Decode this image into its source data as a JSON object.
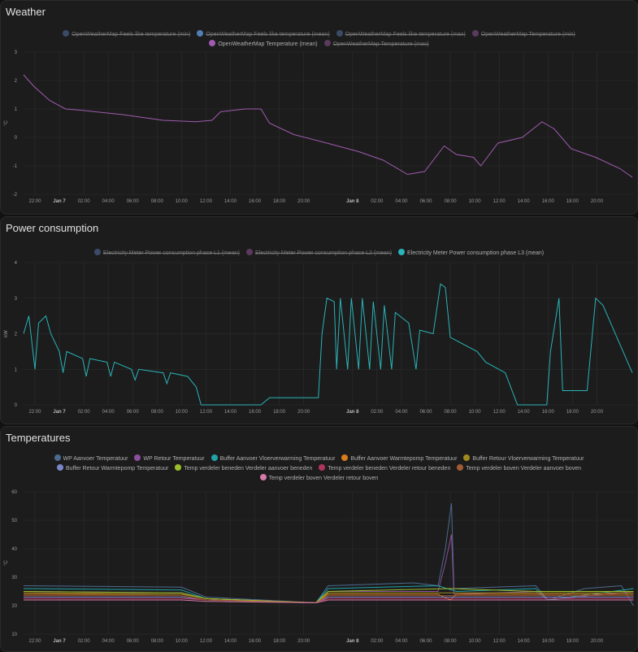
{
  "chart_data": [
    {
      "id": "weather",
      "type": "line",
      "title": "Weather",
      "ylabel": "°C",
      "ylim": [
        -2,
        3
      ],
      "yticks": [
        -2,
        -1,
        0,
        1,
        2,
        3
      ],
      "xunit": "hours since Jan 6 22:00",
      "xlim": [
        -0.93,
        49.1
      ],
      "xticks": [
        {
          "h": 0,
          "l": "22:00"
        },
        {
          "h": 2,
          "l": "Jan 7",
          "b": true
        },
        {
          "h": 4,
          "l": "02:00"
        },
        {
          "h": 6,
          "l": "04:00"
        },
        {
          "h": 8,
          "l": "06:00"
        },
        {
          "h": 10,
          "l": "08:00"
        },
        {
          "h": 12,
          "l": "10:00"
        },
        {
          "h": 14,
          "l": "12:00"
        },
        {
          "h": 16,
          "l": "14:00"
        },
        {
          "h": 18,
          "l": "16:00"
        },
        {
          "h": 20,
          "l": "18:00"
        },
        {
          "h": 22,
          "l": "20:00"
        },
        {
          "h": 26,
          "l": "Jan 8",
          "b": true
        },
        {
          "h": 28,
          "l": "02:00"
        },
        {
          "h": 30,
          "l": "04:00"
        },
        {
          "h": 32,
          "l": "06:00"
        },
        {
          "h": 34,
          "l": "08:00"
        },
        {
          "h": 36,
          "l": "10:00"
        },
        {
          "h": 38,
          "l": "12:00"
        },
        {
          "h": 40,
          "l": "14:00"
        },
        {
          "h": 42,
          "l": "16:00"
        },
        {
          "h": 44,
          "l": "18:00"
        },
        {
          "h": 46,
          "l": "20:00"
        }
      ],
      "legend": [
        {
          "name": "OpenWeatherMap Feels like temperature (min)",
          "color": "#3b4a66",
          "hidden": true
        },
        {
          "name": "OpenWeatherMap Feels like temperature (mean)",
          "color": "#4f7fb3",
          "hidden": true
        },
        {
          "name": "OpenWeatherMap Feels like temperature (max)",
          "color": "#3b4a66",
          "hidden": true
        },
        {
          "name": "OpenWeatherMap Temperature (min)",
          "color": "#5a3a5e",
          "hidden": true
        },
        {
          "name": "OpenWeatherMap Temperature (mean)",
          "color": "#a05bb0",
          "hidden": false
        },
        {
          "name": "OpenWeatherMap Temperature (max)",
          "color": "#5a3a5e",
          "hidden": true
        }
      ],
      "series": [
        {
          "name": "OpenWeatherMap Temperature (mean)",
          "color": "#a05bb0",
          "points": [
            [
              -0.93,
              2.2
            ],
            [
              -0.1,
              1.8
            ],
            [
              1.2,
              1.3
            ],
            [
              2.5,
              1.0
            ],
            [
              3.9,
              0.95
            ],
            [
              7.2,
              0.8
            ],
            [
              10.5,
              0.6
            ],
            [
              13.2,
              0.55
            ],
            [
              14.5,
              0.6
            ],
            [
              15.2,
              0.9
            ],
            [
              17.2,
              1.0
            ],
            [
              18.5,
              1.0
            ],
            [
              19.2,
              0.5
            ],
            [
              21.2,
              0.1
            ],
            [
              23.9,
              -0.2
            ],
            [
              26.5,
              -0.5
            ],
            [
              28.5,
              -0.8
            ],
            [
              30.5,
              -1.3
            ],
            [
              31.9,
              -1.2
            ],
            [
              33.5,
              -0.3
            ],
            [
              34.5,
              -0.6
            ],
            [
              35.9,
              -0.7
            ],
            [
              36.5,
              -1.0
            ],
            [
              37.9,
              -0.2
            ],
            [
              39.9,
              0.0
            ],
            [
              41.5,
              0.55
            ],
            [
              42.5,
              0.3
            ],
            [
              43.9,
              -0.4
            ],
            [
              45.9,
              -0.7
            ],
            [
              47.9,
              -1.1
            ],
            [
              48.9,
              -1.4
            ]
          ]
        }
      ]
    },
    {
      "id": "power",
      "type": "line",
      "title": "Power consumption",
      "ylabel": "kW",
      "ylim": [
        0,
        4
      ],
      "yticks": [
        0,
        1,
        2,
        3,
        4
      ],
      "xlim": [
        -0.93,
        49.1
      ],
      "legend": [
        {
          "name": "Electricity Meter Power consumption phase L1 (mean)",
          "color": "#3b4a66",
          "hidden": true
        },
        {
          "name": "Electricity Meter Power consumption phase L2 (mean)",
          "color": "#5a3a5e",
          "hidden": true
        },
        {
          "name": "Electricity Meter Power consumption phase L3 (mean)",
          "color": "#2ab3b8",
          "hidden": false
        }
      ],
      "series": [
        {
          "name": "Electricity Meter Power consumption phase L3 (mean)",
          "color": "#2ab3b8",
          "points": [
            [
              -0.93,
              2.0
            ],
            [
              -0.5,
              2.5
            ],
            [
              0,
              1.0
            ],
            [
              0.3,
              2.3
            ],
            [
              0.9,
              2.5
            ],
            [
              1.3,
              2.0
            ],
            [
              2.0,
              1.5
            ],
            [
              2.3,
              0.9
            ],
            [
              2.6,
              1.5
            ],
            [
              3.9,
              1.3
            ],
            [
              4.2,
              0.8
            ],
            [
              4.5,
              1.3
            ],
            [
              5.9,
              1.2
            ],
            [
              6.2,
              0.8
            ],
            [
              6.5,
              1.2
            ],
            [
              7.9,
              1.0
            ],
            [
              8.2,
              0.7
            ],
            [
              8.5,
              1.0
            ],
            [
              10.5,
              0.9
            ],
            [
              10.8,
              0.6
            ],
            [
              11.1,
              0.9
            ],
            [
              12.5,
              0.8
            ],
            [
              13.2,
              0.5
            ],
            [
              13.6,
              0
            ],
            [
              18.5,
              0
            ],
            [
              19.2,
              0.2
            ],
            [
              23.2,
              0.2
            ],
            [
              23.5,
              2.0
            ],
            [
              23.9,
              3.0
            ],
            [
              24.5,
              2.9
            ],
            [
              24.7,
              1.0
            ],
            [
              25.0,
              3.0
            ],
            [
              25.6,
              1.0
            ],
            [
              25.9,
              3.0
            ],
            [
              26.5,
              1.0
            ],
            [
              26.8,
              3.0
            ],
            [
              27.4,
              1.0
            ],
            [
              27.7,
              2.9
            ],
            [
              28.3,
              1.0
            ],
            [
              28.6,
              2.8
            ],
            [
              29.2,
              1.0
            ],
            [
              29.5,
              2.6
            ],
            [
              30.6,
              2.3
            ],
            [
              31.2,
              1.0
            ],
            [
              31.5,
              2.1
            ],
            [
              32.6,
              2.0
            ],
            [
              33.2,
              3.4
            ],
            [
              33.6,
              3.3
            ],
            [
              34.0,
              1.9
            ],
            [
              36.2,
              1.5
            ],
            [
              36.9,
              1.2
            ],
            [
              38.5,
              0.9
            ],
            [
              39.5,
              0.0
            ],
            [
              41.9,
              0.0
            ],
            [
              42.2,
              1.5
            ],
            [
              42.9,
              3.0
            ],
            [
              43.2,
              0.4
            ],
            [
              45.2,
              0.4
            ],
            [
              45.9,
              3.0
            ],
            [
              46.5,
              2.8
            ],
            [
              48.9,
              0.9
            ]
          ]
        }
      ]
    },
    {
      "id": "temperatures",
      "type": "line",
      "title": "Temperatures",
      "ylabel": "°C",
      "ylim": [
        10,
        60
      ],
      "yticks": [
        10,
        20,
        30,
        40,
        50,
        60
      ],
      "xlim": [
        -0.93,
        49.1
      ],
      "legend": [
        {
          "name": "WP Aanvoer Temperatuur",
          "color": "#4b6a8f"
        },
        {
          "name": "WP Retour Temperatuur",
          "color": "#8d4f9c"
        },
        {
          "name": "Buffer Aanvoer Vloerverwarming Temperatuur",
          "color": "#1fa3a8"
        },
        {
          "name": "Buffer Aanvoer Warmtepomp Temperatuur",
          "color": "#d97a1c"
        },
        {
          "name": "Buffer Retour Vloerverwarming Temperatuur",
          "color": "#a08a1e"
        },
        {
          "name": "Buffer Retour Warmtepomp Temperatuur",
          "color": "#7a86c9"
        },
        {
          "name": "Temp verdeler beneden Verdeler aanvoer beneden",
          "color": "#9bbf2a"
        },
        {
          "name": "Temp verdeler beneden Verdeler retour beneden",
          "color": "#b0355e"
        },
        {
          "name": "Temp verdeler boven Verdeler aanvoer boven",
          "color": "#a05a34"
        },
        {
          "name": "Temp verdeler boven Verdeler retour boven",
          "color": "#d479a8"
        }
      ],
      "series": [
        {
          "name": "WP Aanvoer Temperatuur",
          "color": "#4b6a8f",
          "points": [
            [
              -0.93,
              27
            ],
            [
              12,
              26.5
            ],
            [
              14,
              23
            ],
            [
              23,
              21
            ],
            [
              24,
              27
            ],
            [
              31,
              28
            ],
            [
              33,
              27
            ],
            [
              33.6,
              40
            ],
            [
              34.1,
              56
            ],
            [
              34.3,
              26
            ],
            [
              41,
              27
            ],
            [
              42,
              22
            ],
            [
              45,
              26
            ],
            [
              48,
              27
            ],
            [
              49,
              20
            ]
          ]
        },
        {
          "name": "WP Retour Temperatuur",
          "color": "#8d4f9c",
          "points": [
            [
              -0.93,
              25
            ],
            [
              12,
              24.5
            ],
            [
              14,
              22.5
            ],
            [
              23,
              21
            ],
            [
              24,
              25
            ],
            [
              33,
              25
            ],
            [
              33.6,
              35
            ],
            [
              34.1,
              45
            ],
            [
              34.3,
              24
            ],
            [
              41,
              25
            ],
            [
              42,
              22
            ],
            [
              49,
              25
            ]
          ]
        },
        {
          "name": "Buffer Aanvoer Vloerverwarming Temperatuur",
          "color": "#1fa3a8",
          "points": [
            [
              -0.93,
              26
            ],
            [
              12,
              25.5
            ],
            [
              14,
              22.5
            ],
            [
              23,
              21
            ],
            [
              24,
              26
            ],
            [
              33,
              27
            ],
            [
              34.5,
              25
            ],
            [
              41,
              26
            ],
            [
              42,
              22
            ],
            [
              49,
              26
            ]
          ]
        },
        {
          "name": "Buffer Aanvoer Warmtepomp Temperatuur",
          "color": "#d97a1c",
          "points": [
            [
              -0.93,
              24
            ],
            [
              12,
              24
            ],
            [
              14,
              22.5
            ],
            [
              23,
              21
            ],
            [
              24,
              24
            ],
            [
              33,
              24
            ],
            [
              34,
              22
            ],
            [
              34.5,
              24
            ],
            [
              49,
              24
            ]
          ]
        },
        {
          "name": "Buffer Retour Vloerverwarming Temperatuur",
          "color": "#a08a1e",
          "points": [
            [
              -0.93,
              24.5
            ],
            [
              12,
              24
            ],
            [
              14,
              22.5
            ],
            [
              23,
              21
            ],
            [
              24,
              24.5
            ],
            [
              49,
              24.5
            ]
          ]
        },
        {
          "name": "Buffer Retour Warmtepomp Temperatuur",
          "color": "#7a86c9",
          "points": [
            [
              -0.93,
              23
            ],
            [
              12,
              23
            ],
            [
              14,
              22
            ],
            [
              23,
              21
            ],
            [
              24,
              23
            ],
            [
              49,
              23
            ]
          ]
        },
        {
          "name": "Temp verdeler beneden Verdeler aanvoer beneden",
          "color": "#9bbf2a",
          "points": [
            [
              -0.93,
              25
            ],
            [
              12,
              24.5
            ],
            [
              14,
              22.5
            ],
            [
              23,
              21
            ],
            [
              24,
              25
            ],
            [
              34,
              26
            ],
            [
              41,
              25
            ],
            [
              49,
              25
            ]
          ]
        },
        {
          "name": "Temp verdeler beneden Verdeler retour beneden",
          "color": "#b0355e",
          "points": [
            [
              -0.93,
              22.5
            ],
            [
              12,
              22.5
            ],
            [
              14,
              22
            ],
            [
              23,
              21
            ],
            [
              24,
              22.5
            ],
            [
              49,
              22.5
            ]
          ]
        },
        {
          "name": "Temp verdeler boven Verdeler aanvoer boven",
          "color": "#a05a34",
          "points": [
            [
              -0.93,
              23.5
            ],
            [
              12,
              23.5
            ],
            [
              14,
              22
            ],
            [
              23,
              21
            ],
            [
              24,
              23.5
            ],
            [
              49,
              23.5
            ]
          ]
        },
        {
          "name": "Temp verdeler boven Verdeler retour boven",
          "color": "#d479a8",
          "points": [
            [
              -0.93,
              22
            ],
            [
              12,
              22
            ],
            [
              14,
              21.5
            ],
            [
              23,
              21
            ],
            [
              24,
              22
            ],
            [
              49,
              22
            ]
          ]
        }
      ]
    }
  ]
}
